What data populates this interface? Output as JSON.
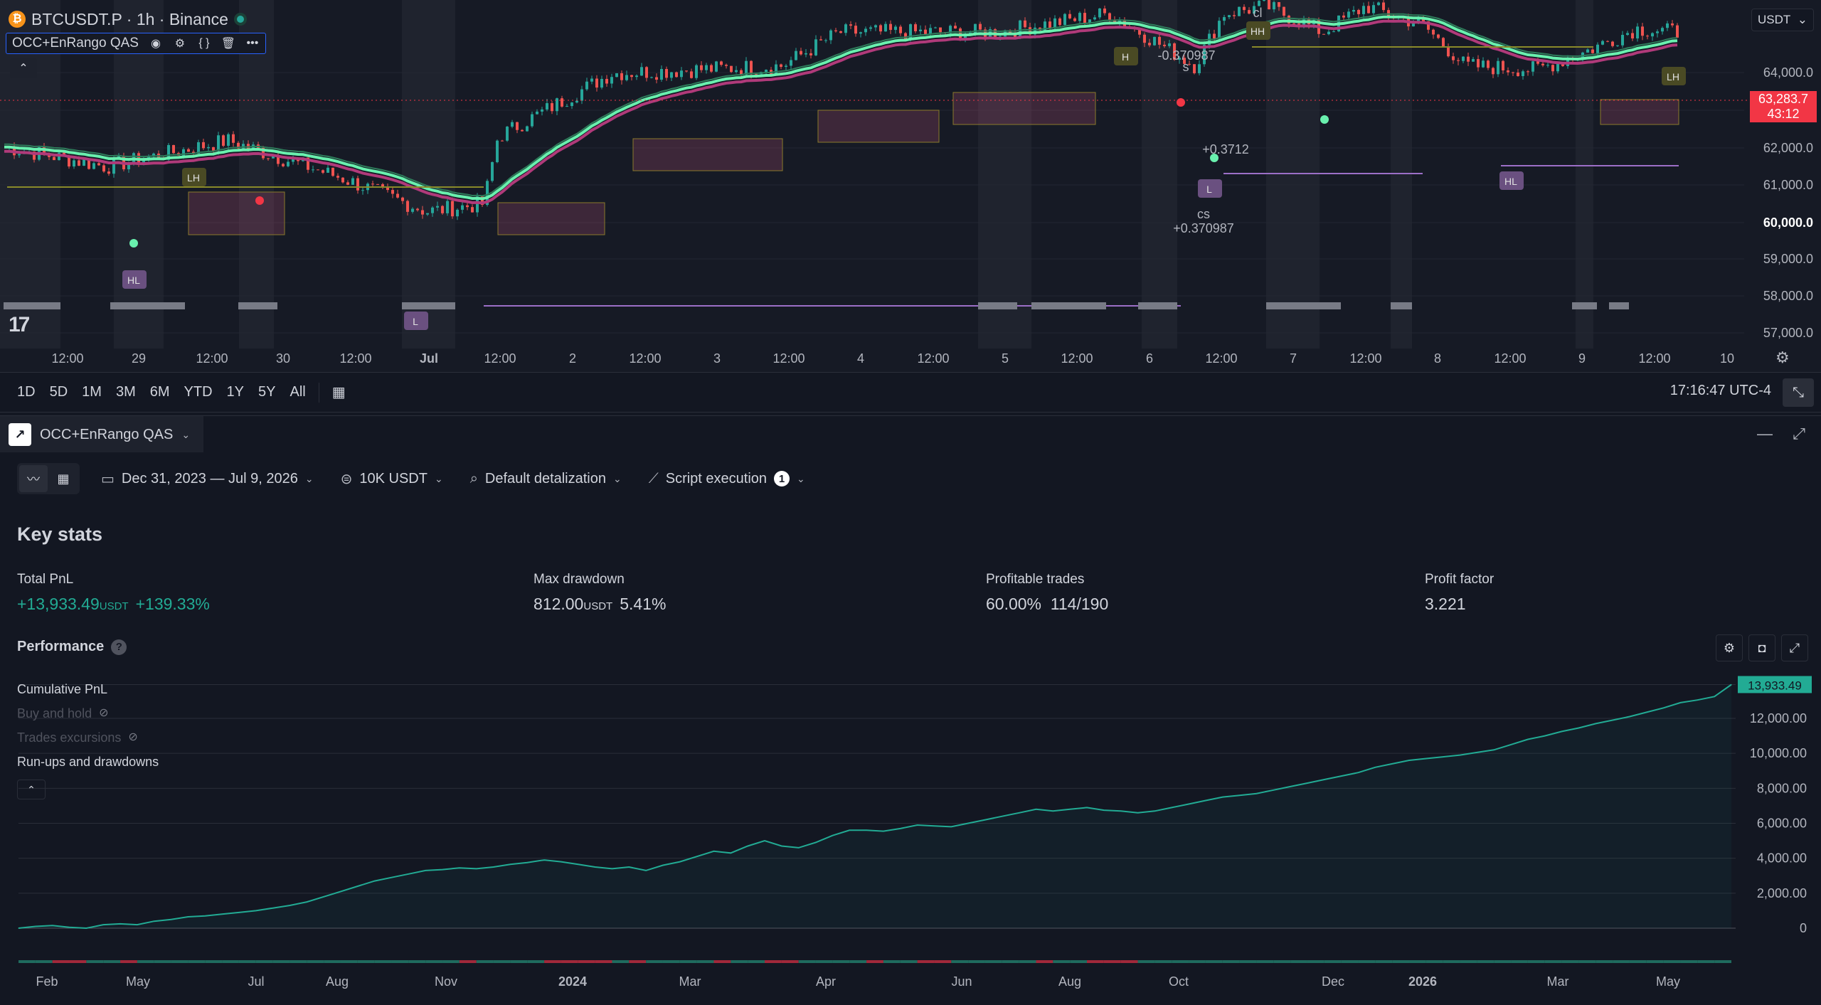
{
  "symbol": {
    "title": "BTCUSDT.P · 1h · Binance",
    "icon": "bitcoin-icon",
    "indicator": "OCC+EnRango QAS",
    "currency": "USDT",
    "last_price": "63,283.7",
    "countdown": "43:12",
    "price_axis": [
      "64,000.0",
      "63,000.0",
      "62,000.0",
      "61,000.0",
      "60,000.0",
      "59,000.0",
      "58,000.0",
      "57,000.0"
    ],
    "time_axis": [
      "12:00",
      "29",
      "12:00",
      "30",
      "12:00",
      "Jul",
      "12:00",
      "2",
      "12:00",
      "3",
      "12:00",
      "4",
      "12:00",
      "5",
      "12:00",
      "6",
      "12:00",
      "7",
      "12:00",
      "8",
      "12:00",
      "9",
      "12:00",
      "10"
    ],
    "annotations": {
      "lh_left": "LH",
      "hl_left": "HL",
      "l_bottom": "L",
      "h_mid": "H",
      "hh_top": "HH",
      "cl": "cl",
      "s": "s",
      "neg_level": "-0.370987",
      "level_3712": "+0.3712",
      "l_mid": "L",
      "cs": "cs",
      "pos_level": "+0.370987",
      "hl_right": "HL",
      "lh_right": "LH"
    }
  },
  "range_bar": {
    "ranges": [
      "1D",
      "5D",
      "1M",
      "3M",
      "6M",
      "YTD",
      "1Y",
      "5Y",
      "All"
    ],
    "clock": "17:16:47 UTC-4"
  },
  "panel": {
    "tab_label": "OCC+EnRango QAS",
    "filters": {
      "date_range": "Dec 31, 2023 — Jul 9, 2026",
      "capital": "10K USDT",
      "detalization": "Default detalization",
      "execution": "Script execution",
      "execution_count": "1"
    },
    "key_stats_title": "Key stats",
    "stats": [
      {
        "label": "Total PnL",
        "value": "+13,933.49",
        "unit": "USDT",
        "extra": "+139.33%"
      },
      {
        "label": "Max drawdown",
        "value": "812.00",
        "unit": "USDT",
        "extra": "5.41%"
      },
      {
        "label": "Profitable trades",
        "value": "60.00%",
        "unit": "",
        "extra": "114/190"
      },
      {
        "label": "Profit factor",
        "value": "3.221",
        "unit": "",
        "extra": ""
      }
    ],
    "performance_title": "Performance",
    "legend": {
      "cumulative": "Cumulative PnL",
      "buy_hold": "Buy and hold",
      "excursions": "Trades excursions",
      "runups": "Run-ups and drawdowns"
    }
  },
  "chart_data": {
    "type": "area",
    "title": "",
    "xlabel": "",
    "ylabel": "",
    "ylim": [
      0,
      14000
    ],
    "y_ticks": [
      "12,000.00",
      "10,000.00",
      "8,000.00",
      "6,000.00",
      "4,000.00",
      "2,000.00",
      "0"
    ],
    "x_ticks": [
      "Feb",
      "May",
      "Jul",
      "Aug",
      "Nov",
      "2024",
      "Mar",
      "Apr",
      "Jun",
      "Aug",
      "Oct",
      "Dec",
      "2026",
      "Mar",
      "May"
    ],
    "last_value_label": "13,933.49",
    "series": [
      {
        "name": "Cumulative PnL",
        "color": "#22ab94",
        "values": [
          0,
          100,
          150,
          50,
          0,
          200,
          250,
          200,
          400,
          500,
          650,
          700,
          800,
          900,
          1000,
          1150,
          1300,
          1500,
          1800,
          2100,
          2400,
          2700,
          2900,
          3100,
          3300,
          3350,
          3450,
          3400,
          3500,
          3650,
          3750,
          3900,
          3800,
          3650,
          3500,
          3400,
          3500,
          3300,
          3600,
          3800,
          4100,
          4400,
          4300,
          4700,
          5000,
          4700,
          4600,
          4900,
          5300,
          5600,
          5600,
          5550,
          5700,
          5900,
          5850,
          5800,
          6000,
          6200,
          6400,
          6600,
          6800,
          6700,
          6800,
          6900,
          6750,
          6700,
          6600,
          6700,
          6900,
          7100,
          7300,
          7500,
          7600,
          7700,
          7900,
          8100,
          8300,
          8500,
          8700,
          8900,
          9200,
          9400,
          9600,
          9700,
          9800,
          9900,
          10050,
          10200,
          10500,
          10800,
          11000,
          11250,
          11450,
          11700,
          11900,
          12100,
          12350,
          12600,
          12900,
          13050,
          13250,
          13933.49
        ]
      }
    ],
    "runup_drawdown_bars": "green-red strip"
  },
  "colors": {
    "up": "#22ab94",
    "down": "#f23645",
    "accent": "#2962ff",
    "ma_fast": "#69f0ae",
    "ma_slow": "#b03a7a"
  }
}
